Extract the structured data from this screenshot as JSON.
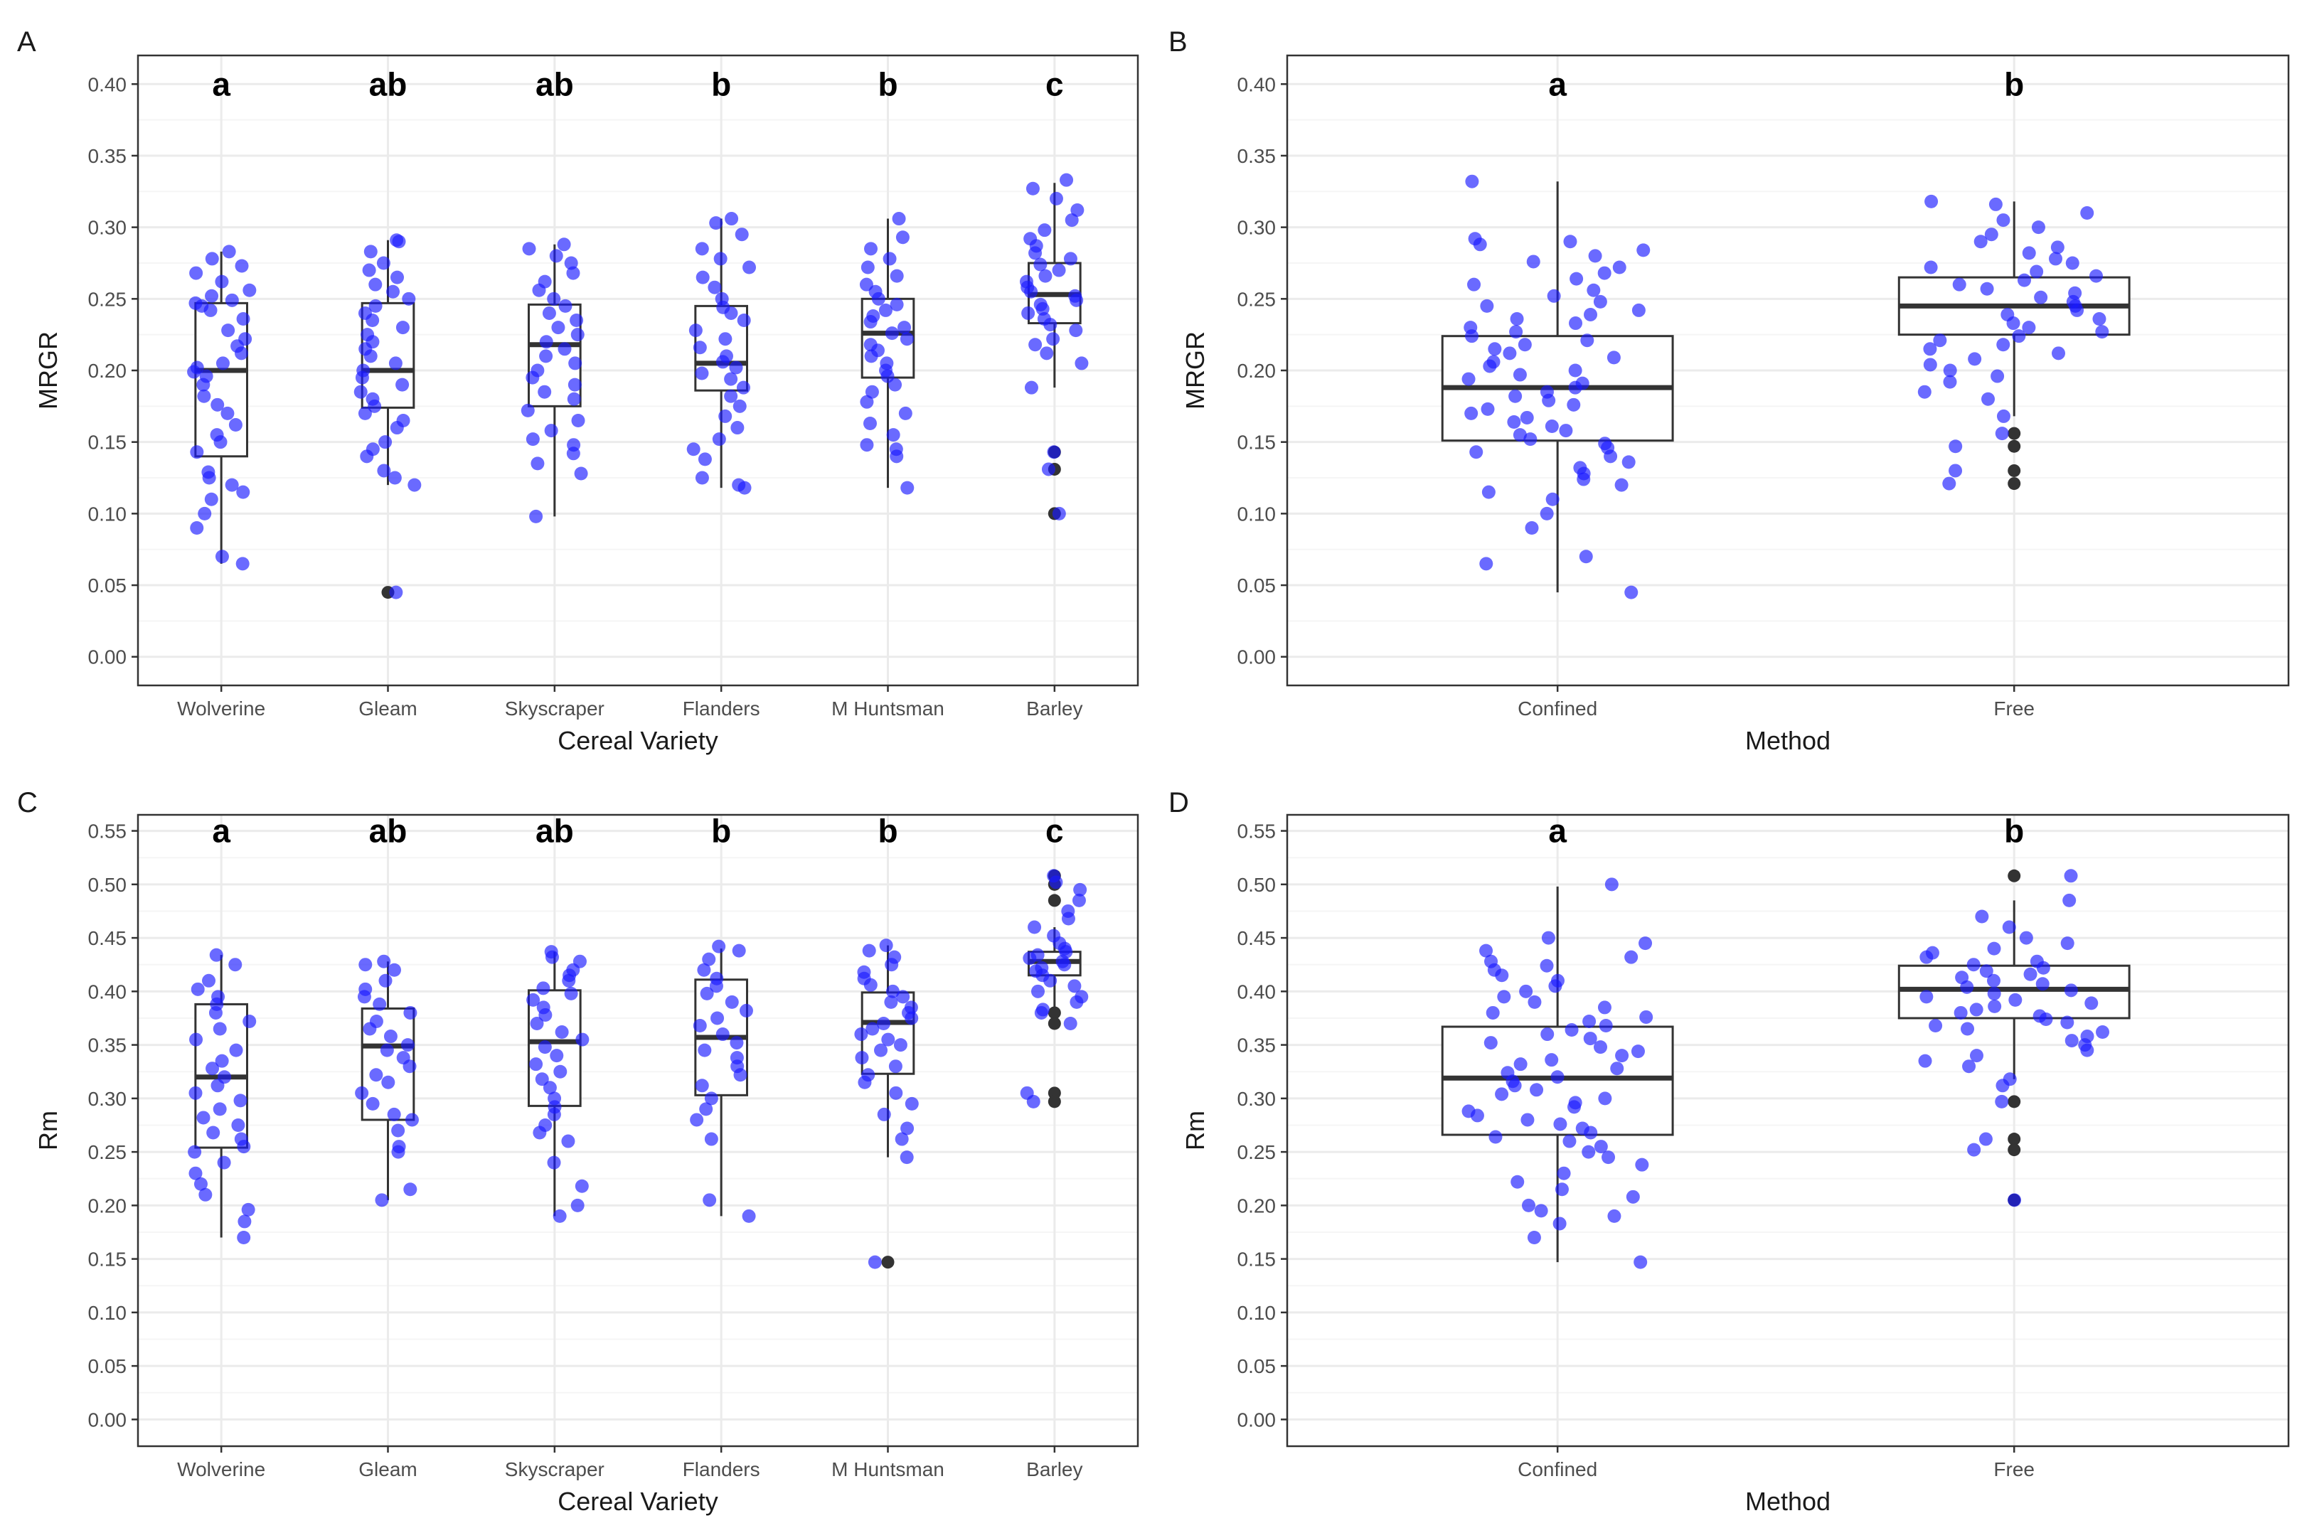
{
  "colors": {
    "point": "#1a1aff",
    "outlier": "#333333",
    "box": "#333333",
    "grid_major": "#ebebeb",
    "grid_minor": "#f5f5f5",
    "frame": "#333333"
  },
  "chart_data": [
    {
      "panel": "A",
      "type": "box",
      "xlabel": "Cereal Variety",
      "ylabel": "MRGR",
      "ylim": [
        -0.02,
        0.42
      ],
      "yticks": [
        0.0,
        0.05,
        0.1,
        0.15,
        0.2,
        0.25,
        0.3,
        0.35,
        0.4
      ],
      "ytick_labels": [
        "0.00",
        "0.05",
        "0.10",
        "0.15",
        "0.20",
        "0.25",
        "0.30",
        "0.35",
        "0.40"
      ],
      "letter_y": 0.4,
      "groups": [
        {
          "name": "Wolverine",
          "letter": "a",
          "q1": 0.14,
          "median": 0.2,
          "q3": 0.247,
          "wlo": 0.065,
          "whi": 0.283,
          "outliers": [],
          "points": [
            0.283,
            0.278,
            0.273,
            0.268,
            0.262,
            0.256,
            0.252,
            0.249,
            0.247,
            0.245,
            0.242,
            0.236,
            0.228,
            0.222,
            0.217,
            0.212,
            0.205,
            0.202,
            0.199,
            0.196,
            0.19,
            0.182,
            0.176,
            0.17,
            0.162,
            0.155,
            0.15,
            0.143,
            0.129,
            0.125,
            0.12,
            0.115,
            0.11,
            0.1,
            0.09,
            0.07,
            0.065
          ]
        },
        {
          "name": "Gleam",
          "letter": "ab",
          "q1": 0.174,
          "median": 0.2,
          "q3": 0.247,
          "wlo": 0.12,
          "whi": 0.291,
          "outliers": [
            0.045
          ],
          "points": [
            0.291,
            0.29,
            0.283,
            0.275,
            0.27,
            0.265,
            0.26,
            0.255,
            0.25,
            0.245,
            0.24,
            0.235,
            0.23,
            0.225,
            0.22,
            0.215,
            0.21,
            0.205,
            0.2,
            0.195,
            0.19,
            0.185,
            0.18,
            0.175,
            0.17,
            0.165,
            0.16,
            0.15,
            0.145,
            0.14,
            0.13,
            0.125,
            0.12,
            0.045
          ]
        },
        {
          "name": "Skyscraper",
          "letter": "ab",
          "q1": 0.175,
          "median": 0.218,
          "q3": 0.246,
          "wlo": 0.098,
          "whi": 0.288,
          "outliers": [],
          "points": [
            0.288,
            0.285,
            0.28,
            0.275,
            0.268,
            0.262,
            0.256,
            0.25,
            0.245,
            0.24,
            0.235,
            0.23,
            0.225,
            0.22,
            0.215,
            0.21,
            0.205,
            0.2,
            0.195,
            0.19,
            0.185,
            0.18,
            0.172,
            0.165,
            0.158,
            0.152,
            0.148,
            0.142,
            0.135,
            0.128,
            0.098
          ]
        },
        {
          "name": "Flanders",
          "letter": "b",
          "q1": 0.186,
          "median": 0.205,
          "q3": 0.245,
          "wlo": 0.118,
          "whi": 0.306,
          "outliers": [],
          "points": [
            0.306,
            0.303,
            0.295,
            0.285,
            0.278,
            0.272,
            0.265,
            0.258,
            0.25,
            0.244,
            0.24,
            0.235,
            0.228,
            0.222,
            0.216,
            0.21,
            0.206,
            0.202,
            0.198,
            0.194,
            0.188,
            0.182,
            0.175,
            0.168,
            0.16,
            0.152,
            0.145,
            0.138,
            0.125,
            0.12,
            0.118
          ]
        },
        {
          "name": "M Huntsman",
          "letter": "b",
          "q1": 0.195,
          "median": 0.226,
          "q3": 0.25,
          "wlo": 0.118,
          "whi": 0.306,
          "outliers": [],
          "points": [
            0.306,
            0.293,
            0.285,
            0.278,
            0.272,
            0.266,
            0.26,
            0.255,
            0.25,
            0.246,
            0.242,
            0.238,
            0.234,
            0.23,
            0.226,
            0.222,
            0.218,
            0.214,
            0.21,
            0.205,
            0.2,
            0.196,
            0.19,
            0.185,
            0.178,
            0.17,
            0.163,
            0.155,
            0.148,
            0.145,
            0.14,
            0.118
          ]
        },
        {
          "name": "Barley",
          "letter": "c",
          "q1": 0.233,
          "median": 0.253,
          "q3": 0.275,
          "wlo": 0.188,
          "whi": 0.331,
          "outliers": [
            0.143,
            0.131,
            0.1
          ],
          "points": [
            0.333,
            0.327,
            0.32,
            0.312,
            0.305,
            0.298,
            0.292,
            0.287,
            0.282,
            0.278,
            0.274,
            0.27,
            0.266,
            0.262,
            0.258,
            0.255,
            0.252,
            0.249,
            0.246,
            0.243,
            0.24,
            0.236,
            0.232,
            0.228,
            0.222,
            0.218,
            0.212,
            0.205,
            0.188,
            0.143,
            0.131,
            0.1
          ]
        }
      ]
    },
    {
      "panel": "B",
      "type": "box",
      "xlabel": "Method",
      "ylabel": "MRGR",
      "ylim": [
        -0.02,
        0.42
      ],
      "yticks": [
        0.0,
        0.05,
        0.1,
        0.15,
        0.2,
        0.25,
        0.3,
        0.35,
        0.4
      ],
      "ytick_labels": [
        "0.00",
        "0.05",
        "0.10",
        "0.15",
        "0.20",
        "0.25",
        "0.30",
        "0.35",
        "0.40"
      ],
      "letter_y": 0.4,
      "groups": [
        {
          "name": "Confined",
          "letter": "a",
          "q1": 0.151,
          "median": 0.188,
          "q3": 0.224,
          "wlo": 0.045,
          "whi": 0.332,
          "outliers": [],
          "points": [
            0.332,
            0.292,
            0.29,
            0.288,
            0.284,
            0.28,
            0.276,
            0.272,
            0.268,
            0.264,
            0.26,
            0.256,
            0.252,
            0.248,
            0.245,
            0.242,
            0.239,
            0.236,
            0.233,
            0.23,
            0.227,
            0.224,
            0.221,
            0.218,
            0.215,
            0.212,
            0.209,
            0.206,
            0.203,
            0.2,
            0.197,
            0.194,
            0.191,
            0.188,
            0.185,
            0.182,
            0.179,
            0.176,
            0.173,
            0.17,
            0.167,
            0.164,
            0.161,
            0.158,
            0.155,
            0.152,
            0.149,
            0.146,
            0.143,
            0.14,
            0.136,
            0.132,
            0.128,
            0.124,
            0.12,
            0.115,
            0.11,
            0.1,
            0.09,
            0.07,
            0.065,
            0.045
          ]
        },
        {
          "name": "Free",
          "letter": "b",
          "q1": 0.225,
          "median": 0.245,
          "q3": 0.265,
          "wlo": 0.168,
          "whi": 0.318,
          "outliers": [
            0.156,
            0.147,
            0.13,
            0.121
          ],
          "points": [
            0.318,
            0.316,
            0.31,
            0.305,
            0.3,
            0.295,
            0.29,
            0.286,
            0.282,
            0.278,
            0.275,
            0.272,
            0.269,
            0.266,
            0.263,
            0.26,
            0.257,
            0.254,
            0.251,
            0.248,
            0.245,
            0.242,
            0.239,
            0.236,
            0.233,
            0.23,
            0.227,
            0.224,
            0.221,
            0.218,
            0.215,
            0.212,
            0.208,
            0.204,
            0.2,
            0.196,
            0.192,
            0.185,
            0.18,
            0.168,
            0.156,
            0.147,
            0.13,
            0.121
          ]
        }
      ]
    },
    {
      "panel": "C",
      "type": "box",
      "xlabel": "Cereal Variety",
      "ylabel": "Rm",
      "ylim": [
        -0.025,
        0.565
      ],
      "yticks": [
        0.0,
        0.05,
        0.1,
        0.15,
        0.2,
        0.25,
        0.3,
        0.35,
        0.4,
        0.45,
        0.5,
        0.55
      ],
      "ytick_labels": [
        "0.00",
        "0.05",
        "0.10",
        "0.15",
        "0.20",
        "0.25",
        "0.30",
        "0.35",
        "0.40",
        "0.45",
        "0.50",
        "0.55"
      ],
      "letter_y": 0.55,
      "groups": [
        {
          "name": "Wolverine",
          "letter": "a",
          "q1": 0.254,
          "median": 0.32,
          "q3": 0.388,
          "wlo": 0.17,
          "whi": 0.434,
          "outliers": [],
          "points": [
            0.434,
            0.425,
            0.41,
            0.402,
            0.395,
            0.388,
            0.38,
            0.372,
            0.365,
            0.355,
            0.345,
            0.335,
            0.328,
            0.32,
            0.312,
            0.305,
            0.298,
            0.29,
            0.282,
            0.275,
            0.268,
            0.262,
            0.255,
            0.25,
            0.24,
            0.23,
            0.22,
            0.21,
            0.196,
            0.185,
            0.17
          ]
        },
        {
          "name": "Gleam",
          "letter": "ab",
          "q1": 0.28,
          "median": 0.349,
          "q3": 0.384,
          "wlo": 0.205,
          "whi": 0.428,
          "outliers": [],
          "points": [
            0.428,
            0.425,
            0.42,
            0.41,
            0.402,
            0.395,
            0.388,
            0.38,
            0.372,
            0.365,
            0.358,
            0.35,
            0.345,
            0.338,
            0.33,
            0.322,
            0.315,
            0.305,
            0.295,
            0.285,
            0.28,
            0.27,
            0.255,
            0.25,
            0.215,
            0.205
          ]
        },
        {
          "name": "Skyscraper",
          "letter": "ab",
          "q1": 0.293,
          "median": 0.353,
          "q3": 0.401,
          "wlo": 0.19,
          "whi": 0.437,
          "outliers": [],
          "points": [
            0.437,
            0.432,
            0.428,
            0.42,
            0.415,
            0.41,
            0.403,
            0.398,
            0.392,
            0.385,
            0.378,
            0.37,
            0.362,
            0.355,
            0.348,
            0.34,
            0.332,
            0.325,
            0.318,
            0.31,
            0.3,
            0.292,
            0.285,
            0.275,
            0.268,
            0.26,
            0.24,
            0.218,
            0.2,
            0.19
          ]
        },
        {
          "name": "Flanders",
          "letter": "b",
          "q1": 0.303,
          "median": 0.357,
          "q3": 0.411,
          "wlo": 0.19,
          "whi": 0.44,
          "outliers": [],
          "points": [
            0.442,
            0.438,
            0.43,
            0.42,
            0.412,
            0.405,
            0.398,
            0.39,
            0.382,
            0.375,
            0.368,
            0.36,
            0.352,
            0.345,
            0.338,
            0.33,
            0.322,
            0.312,
            0.3,
            0.29,
            0.28,
            0.262,
            0.205,
            0.19
          ]
        },
        {
          "name": "M Huntsman",
          "letter": "b",
          "q1": 0.323,
          "median": 0.371,
          "q3": 0.399,
          "wlo": 0.245,
          "whi": 0.443,
          "outliers": [
            0.147
          ],
          "points": [
            0.443,
            0.438,
            0.432,
            0.425,
            0.418,
            0.412,
            0.406,
            0.4,
            0.395,
            0.39,
            0.385,
            0.38,
            0.375,
            0.37,
            0.365,
            0.36,
            0.355,
            0.35,
            0.345,
            0.338,
            0.33,
            0.322,
            0.315,
            0.305,
            0.295,
            0.285,
            0.272,
            0.262,
            0.245,
            0.147
          ]
        },
        {
          "name": "Barley",
          "letter": "c",
          "q1": 0.415,
          "median": 0.428,
          "q3": 0.437,
          "wlo": 0.383,
          "whi": 0.46,
          "outliers": [
            0.508,
            0.5,
            0.485,
            0.38,
            0.37,
            0.305,
            0.297
          ],
          "points": [
            0.508,
            0.502,
            0.495,
            0.485,
            0.475,
            0.468,
            0.46,
            0.452,
            0.445,
            0.44,
            0.437,
            0.434,
            0.431,
            0.428,
            0.425,
            0.422,
            0.419,
            0.415,
            0.41,
            0.405,
            0.4,
            0.395,
            0.39,
            0.383,
            0.38,
            0.37,
            0.305,
            0.297
          ]
        }
      ]
    },
    {
      "panel": "D",
      "type": "box",
      "xlabel": "Method",
      "ylabel": "Rm",
      "ylim": [
        -0.025,
        0.565
      ],
      "yticks": [
        0.0,
        0.05,
        0.1,
        0.15,
        0.2,
        0.25,
        0.3,
        0.35,
        0.4,
        0.45,
        0.5,
        0.55
      ],
      "ytick_labels": [
        "0.00",
        "0.05",
        "0.10",
        "0.15",
        "0.20",
        "0.25",
        "0.30",
        "0.35",
        "0.40",
        "0.45",
        "0.50",
        "0.55"
      ],
      "letter_y": 0.55,
      "groups": [
        {
          "name": "Confined",
          "letter": "a",
          "q1": 0.266,
          "median": 0.319,
          "q3": 0.367,
          "wlo": 0.147,
          "whi": 0.498,
          "outliers": [],
          "points": [
            0.5,
            0.45,
            0.445,
            0.438,
            0.432,
            0.428,
            0.424,
            0.42,
            0.415,
            0.41,
            0.405,
            0.4,
            0.395,
            0.39,
            0.385,
            0.38,
            0.376,
            0.372,
            0.368,
            0.364,
            0.36,
            0.356,
            0.352,
            0.348,
            0.344,
            0.34,
            0.336,
            0.332,
            0.328,
            0.324,
            0.32,
            0.316,
            0.312,
            0.308,
            0.304,
            0.3,
            0.296,
            0.292,
            0.288,
            0.284,
            0.28,
            0.276,
            0.272,
            0.268,
            0.264,
            0.26,
            0.255,
            0.25,
            0.245,
            0.238,
            0.23,
            0.222,
            0.215,
            0.208,
            0.2,
            0.195,
            0.19,
            0.183,
            0.17,
            0.147
          ]
        },
        {
          "name": "Free",
          "letter": "b",
          "q1": 0.375,
          "median": 0.402,
          "q3": 0.424,
          "wlo": 0.318,
          "whi": 0.485,
          "outliers": [
            0.508,
            0.297,
            0.262,
            0.252,
            0.205
          ],
          "points": [
            0.508,
            0.485,
            0.47,
            0.46,
            0.45,
            0.445,
            0.44,
            0.436,
            0.432,
            0.428,
            0.425,
            0.422,
            0.419,
            0.416,
            0.413,
            0.41,
            0.407,
            0.404,
            0.401,
            0.398,
            0.395,
            0.392,
            0.389,
            0.386,
            0.383,
            0.38,
            0.377,
            0.374,
            0.371,
            0.368,
            0.365,
            0.362,
            0.358,
            0.354,
            0.35,
            0.345,
            0.34,
            0.335,
            0.33,
            0.318,
            0.312,
            0.297,
            0.262,
            0.252,
            0.205
          ]
        }
      ]
    }
  ]
}
